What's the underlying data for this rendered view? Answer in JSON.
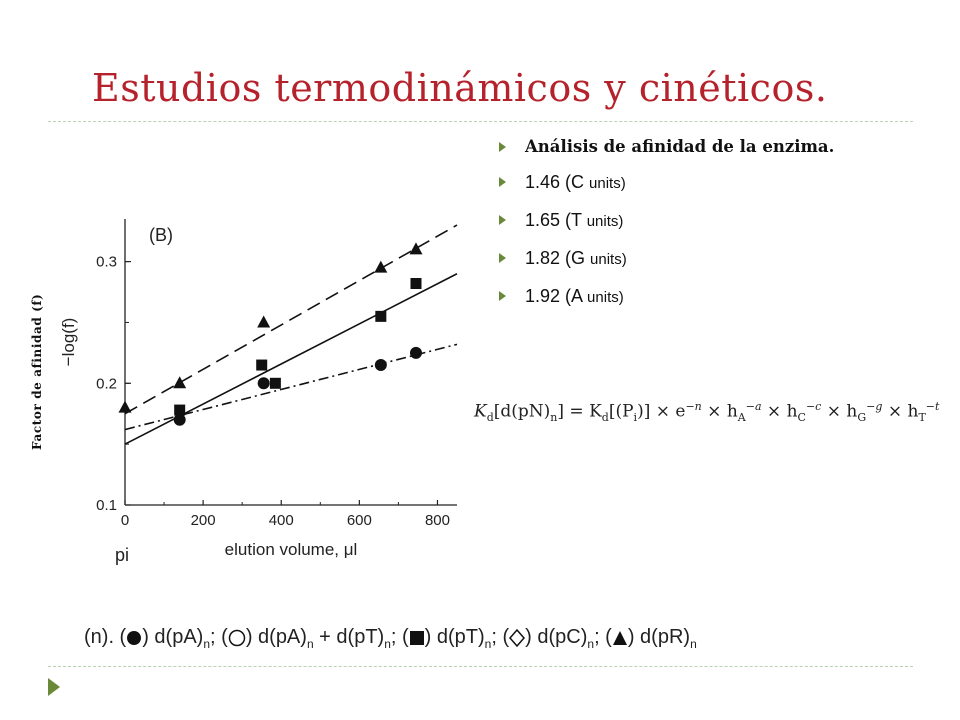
{
  "slide": {
    "title": "Estudios termodinámicos y cinéticos.",
    "y_axis_annotation": "Factor de afinidad (f)",
    "bullets": [
      {
        "text": "Análisis de afinidad de la enzima.",
        "bold": true
      },
      {
        "value": "1.46 (C ",
        "unit": "units)"
      },
      {
        "value": "1.65 (T ",
        "unit": "units)"
      },
      {
        "value": "1.82 (G ",
        "unit": "units)"
      },
      {
        "value": "1.92 (A ",
        "unit": "units)"
      }
    ],
    "formula": {
      "kd": "K",
      "d_sub": "d",
      "lhs": "[d(pN)",
      "n_sub": "n",
      "eq": "] = K",
      "pi": "[(P",
      "i_sub": "i",
      "close": ")] × e",
      "e_exp": "−n",
      "terms": [
        {
          "h": " × h",
          "sub": "A",
          "exp": "−a"
        },
        {
          "h": " × h",
          "sub": "C",
          "exp": "−c"
        },
        {
          "h": " × h",
          "sub": "G",
          "exp": "−g"
        },
        {
          "h": " × h",
          "sub": "T",
          "exp": "−t"
        }
      ]
    },
    "legend": {
      "prefix": "(n). (",
      "items": [
        {
          "symbol": "filled-circle",
          "label": ") d(pA)",
          "sub": "n",
          "sep": "; ("
        },
        {
          "symbol": "open-circle",
          "label": ") d(pA)",
          "sub": "n",
          "label2": " + d(pT)",
          "sub2": "n",
          "sep": "; ("
        },
        {
          "symbol": "filled-square",
          "label": ") d(pT)",
          "sub": "n",
          "sep": "; ("
        },
        {
          "symbol": "open-diamond",
          "label": ") d(pC)",
          "sub": "n",
          "sep": "; ("
        },
        {
          "symbol": "filled-triangle",
          "label": ") d(pR)",
          "sub": "n",
          "sep": ""
        }
      ]
    },
    "colors": {
      "title": "#b5222b",
      "bullet_arrow": "#6a8a3a",
      "rule": "#b9d2b0"
    }
  },
  "chart_data": {
    "type": "scatter",
    "panel_label": "(B)",
    "xlabel": "elution volume, μl",
    "ylabel": "−log(f)",
    "corner_label": "pi",
    "xlim": [
      0,
      850
    ],
    "ylim": [
      0.1,
      0.335
    ],
    "xticks": [
      0,
      200,
      400,
      600,
      800
    ],
    "yticks": [
      0.1,
      0.2,
      0.3
    ],
    "xtick_labels": [
      "0",
      "200",
      "400",
      "600",
      "800"
    ],
    "ytick_labels": [
      "0.1",
      "0.2",
      "0.3"
    ],
    "series": [
      {
        "marker": "triangle",
        "line": "dashed",
        "points": [
          [
            0,
            0.18
          ],
          [
            140,
            0.2
          ],
          [
            355,
            0.25
          ],
          [
            655,
            0.295
          ],
          [
            745,
            0.31
          ]
        ],
        "fit": [
          [
            0,
            0.175
          ],
          [
            850,
            0.33
          ]
        ]
      },
      {
        "marker": "square",
        "line": "solid",
        "points": [
          [
            140,
            0.178
          ],
          [
            350,
            0.215
          ],
          [
            385,
            0.2
          ],
          [
            655,
            0.255
          ],
          [
            745,
            0.282
          ]
        ],
        "fit": [
          [
            0,
            0.15
          ],
          [
            850,
            0.29
          ]
        ]
      },
      {
        "marker": "circle",
        "line": "dashdot",
        "points": [
          [
            140,
            0.17
          ],
          [
            355,
            0.2
          ],
          [
            655,
            0.215
          ],
          [
            745,
            0.225
          ]
        ],
        "fit": [
          [
            0,
            0.162
          ],
          [
            850,
            0.232
          ]
        ]
      }
    ]
  }
}
